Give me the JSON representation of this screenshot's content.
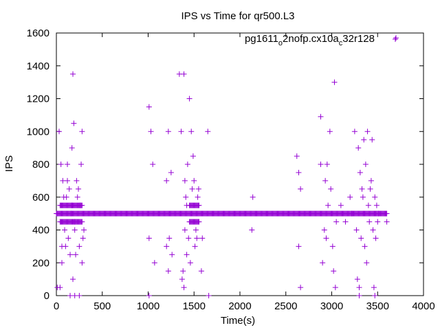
{
  "chart_data": {
    "type": "scatter",
    "title": "IPS vs Time for qr500.L3",
    "xlabel": "Time(s)",
    "ylabel": "IPS",
    "xlim": [
      0,
      4000
    ],
    "ylim": [
      0,
      1600
    ],
    "x_ticks": [
      0,
      500,
      1000,
      1500,
      2000,
      2500,
      3000,
      3500,
      4000
    ],
    "y_ticks": [
      0,
      200,
      400,
      600,
      800,
      1000,
      1200,
      1400,
      1600
    ],
    "grid": false,
    "legend_position": "top-right",
    "series": [
      {
        "name_parts": [
          "pg1611",
          "o",
          "2nofp.cx10a",
          "c",
          "32r128"
        ],
        "color": "#9400d3",
        "marker": "plus",
        "dense_bands": [
          {
            "y": 500,
            "x_from": 0,
            "x_to": 3600
          },
          {
            "y": 550,
            "x_from": 40,
            "x_to": 280
          },
          {
            "y": 450,
            "x_from": 40,
            "x_to": 280
          },
          {
            "y": 450,
            "x_from": 1450,
            "x_to": 1560
          },
          {
            "y": 550,
            "x_from": 1450,
            "x_to": 1560
          }
        ],
        "points": [
          [
            10,
            50
          ],
          [
            40,
            50
          ],
          [
            30,
            1000
          ],
          [
            50,
            800
          ],
          [
            60,
            300
          ],
          [
            60,
            200
          ],
          [
            70,
            700
          ],
          [
            80,
            600
          ],
          [
            90,
            400
          ],
          [
            110,
            600
          ],
          [
            120,
            800
          ],
          [
            130,
            350
          ],
          [
            140,
            650
          ],
          [
            150,
            250
          ],
          [
            160,
            500
          ],
          [
            170,
            550
          ],
          [
            170,
            900
          ],
          [
            180,
            1350
          ],
          [
            180,
            100
          ],
          [
            190,
            1050
          ],
          [
            200,
            450
          ],
          [
            200,
            400
          ],
          [
            210,
            250
          ],
          [
            220,
            700
          ],
          [
            230,
            600
          ],
          [
            240,
            650
          ],
          [
            250,
            300
          ],
          [
            260,
            550
          ],
          [
            270,
            800
          ],
          [
            280,
            1000
          ],
          [
            280,
            200
          ],
          [
            290,
            350
          ],
          [
            300,
            400
          ],
          [
            100,
            300
          ],
          [
            120,
            700
          ],
          [
            200,
            0
          ],
          [
            150,
            0
          ],
          [
            250,
            0
          ],
          [
            1010,
            1150
          ],
          [
            1030,
            1000
          ],
          [
            1050,
            800
          ],
          [
            1070,
            200
          ],
          [
            1010,
            350
          ],
          [
            1010,
            0
          ],
          [
            1200,
            700
          ],
          [
            1220,
            1000
          ],
          [
            1200,
            300
          ],
          [
            1230,
            350
          ],
          [
            1250,
            750
          ],
          [
            1220,
            150
          ],
          [
            1260,
            250
          ],
          [
            1340,
            1350
          ],
          [
            1390,
            1350
          ],
          [
            1360,
            1000
          ],
          [
            1370,
            100
          ],
          [
            1380,
            150
          ],
          [
            1390,
            50
          ],
          [
            1400,
            700
          ],
          [
            1410,
            600
          ],
          [
            1420,
            550
          ],
          [
            1430,
            800
          ],
          [
            1440,
            350
          ],
          [
            1450,
            1200
          ],
          [
            1460,
            200
          ],
          [
            1470,
            1000
          ],
          [
            1480,
            650
          ],
          [
            1490,
            850
          ],
          [
            1500,
            700
          ],
          [
            1510,
            300
          ],
          [
            1520,
            400
          ],
          [
            1530,
            350
          ],
          [
            1540,
            600
          ],
          [
            1550,
            650
          ],
          [
            1580,
            150
          ],
          [
            1590,
            350
          ],
          [
            1650,
            1000
          ],
          [
            1660,
            0
          ],
          [
            1400,
            400
          ],
          [
            1420,
            250
          ],
          [
            2130,
            400
          ],
          [
            2140,
            600
          ],
          [
            2620,
            850
          ],
          [
            2640,
            750
          ],
          [
            2640,
            300
          ],
          [
            2660,
            50
          ],
          [
            2660,
            650
          ],
          [
            2880,
            1090
          ],
          [
            2880,
            800
          ],
          [
            2900,
            200
          ],
          [
            2920,
            400
          ],
          [
            2930,
            700
          ],
          [
            2940,
            350
          ],
          [
            2950,
            800
          ],
          [
            2960,
            550
          ],
          [
            2980,
            1000
          ],
          [
            2990,
            650
          ],
          [
            3010,
            300
          ],
          [
            3020,
            150
          ],
          [
            3030,
            1300
          ],
          [
            3040,
            50
          ],
          [
            3050,
            450
          ],
          [
            3100,
            550
          ],
          [
            3150,
            450
          ],
          [
            3200,
            600
          ],
          [
            3220,
            500
          ],
          [
            3250,
            1000
          ],
          [
            3270,
            400
          ],
          [
            3280,
            100
          ],
          [
            3290,
            900
          ],
          [
            3300,
            50
          ],
          [
            3310,
            750
          ],
          [
            3320,
            350
          ],
          [
            3330,
            650
          ],
          [
            3340,
            600
          ],
          [
            3350,
            950
          ],
          [
            3360,
            300
          ],
          [
            3370,
            800
          ],
          [
            3380,
            200
          ],
          [
            3390,
            1000
          ],
          [
            3400,
            550
          ],
          [
            3410,
            450
          ],
          [
            3420,
            650
          ],
          [
            3430,
            700
          ],
          [
            3440,
            950
          ],
          [
            3450,
            400
          ],
          [
            3460,
            50
          ],
          [
            3470,
            600
          ],
          [
            3480,
            350
          ],
          [
            3490,
            550
          ],
          [
            3500,
            450
          ],
          [
            3510,
            500
          ],
          [
            3600,
            450
          ],
          [
            3700,
            1570
          ],
          [
            3300,
            0
          ],
          [
            3470,
            0
          ]
        ]
      }
    ]
  }
}
